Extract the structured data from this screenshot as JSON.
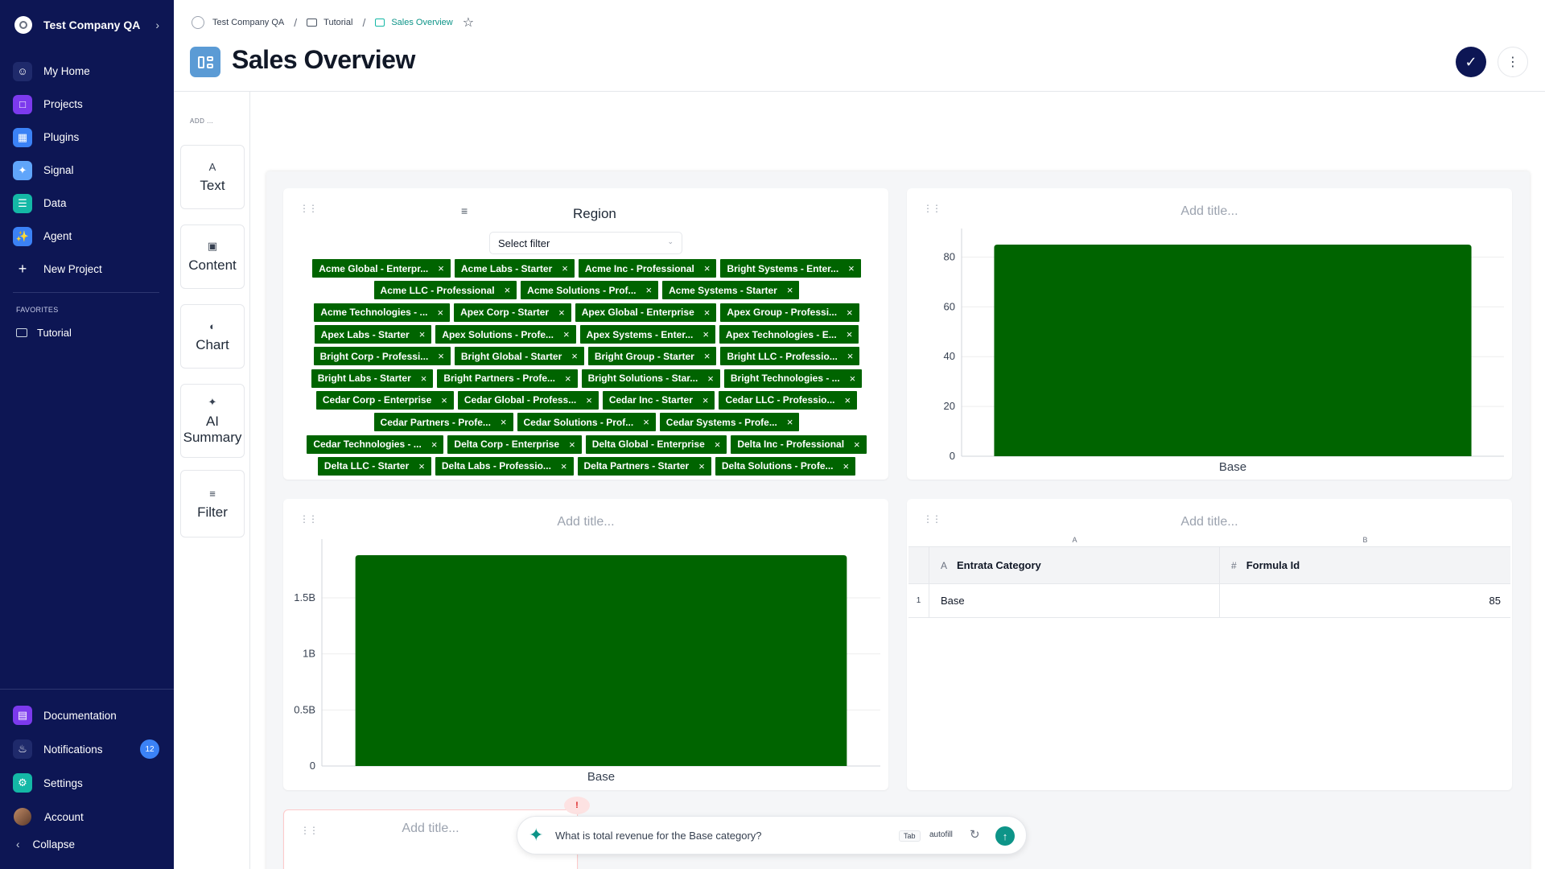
{
  "sidebar": {
    "org_name": "Test Company QA",
    "items": [
      {
        "label": "My Home",
        "icon": "user-icon",
        "color": "#0d1654"
      },
      {
        "label": "Projects",
        "icon": "folder-icon",
        "color": "#7c3aed"
      },
      {
        "label": "Plugins",
        "icon": "grid-icon",
        "color": "#3b82f6"
      },
      {
        "label": "Signal",
        "icon": "signal-icon",
        "color": "#60a5fa"
      },
      {
        "label": "Data",
        "icon": "database-icon",
        "color": "#14b8a6"
      },
      {
        "label": "Agent",
        "icon": "sparkle-icon",
        "color": "#3b82f6"
      },
      {
        "label": "New Project",
        "icon": "plus-icon",
        "color": "#0d1654"
      }
    ],
    "favorites_label": "FAVORITES",
    "favorites": [
      {
        "label": "Tutorial",
        "icon": "folder-icon"
      }
    ],
    "bottom": [
      {
        "label": "Documentation",
        "icon": "document-icon",
        "color": "#7c3aed"
      },
      {
        "label": "Notifications",
        "icon": "bell-icon",
        "color": "#0d1654",
        "badge": "12"
      },
      {
        "label": "Settings",
        "icon": "gear-icon",
        "color": "#14b8a6"
      },
      {
        "label": "Account",
        "icon": "avatar"
      }
    ],
    "collapse_label": "Collapse"
  },
  "header": {
    "breadcrumbs": [
      "Test Company QA",
      "Tutorial",
      "Sales Overview"
    ],
    "title": "Sales Overview"
  },
  "palette": {
    "add_label": "ADD ...",
    "tools": [
      {
        "label": "Text",
        "icon": "text-icon"
      },
      {
        "label": "Content",
        "icon": "image-icon"
      },
      {
        "label": "Chart",
        "icon": "chart-icon"
      },
      {
        "label": "AI Summary",
        "icon": "sparkle-icon"
      },
      {
        "label": "Filter",
        "icon": "filter-icon"
      }
    ]
  },
  "filter_card": {
    "title": "Region",
    "select_placeholder": "Select filter",
    "chip_rows": [
      [
        "Acme Global - Enterpr...",
        "Acme Labs - Starter",
        "Acme Inc - Professional",
        "Bright Systems - Enter..."
      ],
      [
        "Acme LLC - Professional",
        "Acme Solutions - Prof...",
        "Acme Systems - Starter"
      ],
      [
        "Acme Technologies - ...",
        "Apex Corp - Starter",
        "Apex Global - Enterprise",
        "Apex Group - Professi..."
      ],
      [
        "Apex Labs - Starter",
        "Apex Solutions - Profe...",
        "Apex Systems - Enter...",
        "Apex Technologies - E..."
      ],
      [
        "Bright Corp - Professi...",
        "Bright Global - Starter",
        "Bright Group - Starter",
        "Bright LLC - Professio..."
      ],
      [
        "Bright Labs - Starter",
        "Bright Partners - Profe...",
        "Bright Solutions - Star...",
        "Bright Technologies - ..."
      ],
      [
        "Cedar Corp - Enterprise",
        "Cedar Global - Profess...",
        "Cedar Inc - Starter",
        "Cedar LLC - Professio..."
      ],
      [
        "Cedar Partners - Profe...",
        "Cedar Solutions - Prof...",
        "Cedar Systems - Profe..."
      ],
      [
        "Cedar Technologies - ...",
        "Delta Corp - Enterprise",
        "Delta Global - Enterprise",
        "Delta Inc - Professional"
      ],
      [
        "Delta LLC - Starter",
        "Delta Labs - Professio...",
        "Delta Partners - Starter",
        "Delta Solutions - Profe..."
      ]
    ],
    "chip_color": "#006400"
  },
  "chart_top": {
    "title_placeholder": "Add title...",
    "chart_data": {
      "type": "bar",
      "categories": [
        "Base"
      ],
      "values": [
        85
      ],
      "ylim": [
        0,
        85
      ],
      "yticks": [
        "0",
        "20",
        "40",
        "60",
        "80"
      ],
      "ytick_values": [
        0,
        20,
        40,
        60,
        80
      ],
      "color": "#006400",
      "grid": true
    }
  },
  "chart_bottom": {
    "title_placeholder": "Add title...",
    "chart_data": {
      "type": "bar",
      "categories": [
        "Base"
      ],
      "values": [
        1880000000
      ],
      "ylim": [
        0,
        1880000000
      ],
      "yticks": [
        "0",
        "0.5B",
        "1B",
        "1.5B"
      ],
      "ytick_values": [
        0,
        500000000,
        1000000000,
        1500000000
      ],
      "color": "#006400",
      "grid": true
    }
  },
  "table_card": {
    "title_placeholder": "Add title...",
    "col_letters": [
      "A",
      "B"
    ],
    "headers": [
      {
        "label": "Entrata Category",
        "type": "A"
      },
      {
        "label": "Formula Id",
        "type": "#"
      }
    ],
    "rows": [
      {
        "n": "1",
        "a": "Base",
        "b": "85"
      }
    ]
  },
  "bottom_card": {
    "title_placeholder": "Add title...",
    "warning": "!"
  },
  "ai_bar": {
    "placeholder": "What is total revenue for the Base category?",
    "tab_key": "Tab",
    "autofill": "autofill"
  }
}
